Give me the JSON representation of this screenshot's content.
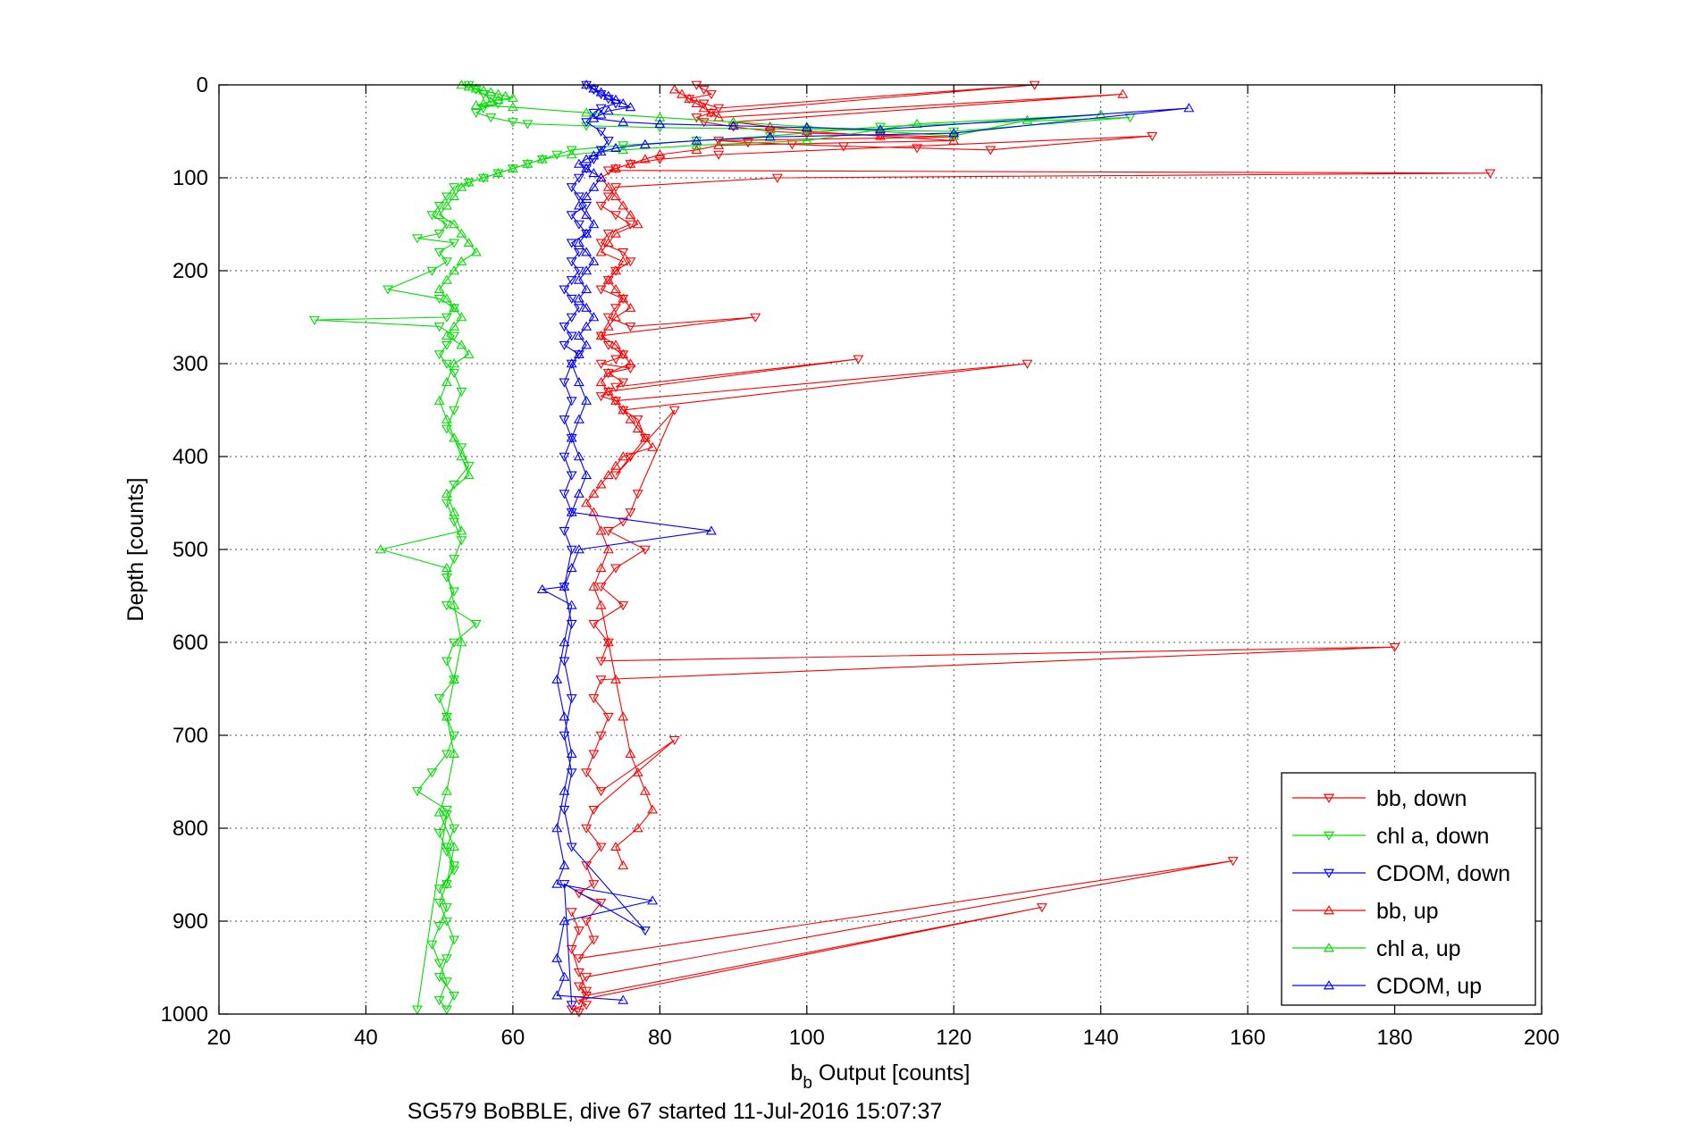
{
  "chart_data": {
    "type": "scatter",
    "xlabel_main": "b",
    "xlabel_sub": "b",
    "xlabel_rest": " Output [counts]",
    "ylabel": "Depth [counts]",
    "caption": "SG579 BoBBLE, dive 67 started 11-Jul-2016 15:07:37",
    "xlim": [
      20,
      200
    ],
    "ylim": [
      0,
      1000
    ],
    "y_reversed": true,
    "grid": true,
    "xticks": [
      "20",
      "40",
      "60",
      "80",
      "100",
      "120",
      "140",
      "160",
      "180",
      "200"
    ],
    "yticks": [
      "0",
      "100",
      "200",
      "300",
      "400",
      "500",
      "600",
      "700",
      "800",
      "900",
      "1000"
    ],
    "legend_position": "bottom-right",
    "series": [
      {
        "name": "bb, down",
        "color": "#ff0000",
        "marker": "triangle-down",
        "x": [
          85,
          86,
          87,
          84,
          86,
          88,
          131,
          87,
          85,
          86,
          90,
          95,
          100,
          110,
          120,
          88,
          92,
          98,
          105,
          115,
          125,
          147,
          88,
          80,
          76,
          74,
          73,
          193,
          96,
          74,
          73,
          72,
          74,
          76,
          73,
          72,
          75,
          76,
          74,
          73,
          72,
          75,
          74,
          73,
          76,
          93,
          72,
          73,
          75,
          74,
          72,
          76,
          73,
          75,
          74,
          107,
          73,
          72,
          74,
          130,
          75,
          77,
          78,
          76,
          74,
          82,
          77,
          76,
          75,
          73,
          78,
          74,
          72,
          75,
          71,
          73,
          72,
          180,
          72,
          71,
          73,
          72,
          71,
          70,
          72,
          82,
          71,
          70,
          72,
          70,
          71,
          69,
          72,
          70,
          71,
          69,
          158,
          70,
          69,
          70,
          132,
          69,
          70,
          68,
          69,
          70,
          69,
          68,
          69,
          68
        ],
        "y": [
          0,
          5,
          10,
          15,
          20,
          25,
          0,
          30,
          35,
          40,
          45,
          50,
          52,
          54,
          56,
          60,
          62,
          64,
          66,
          68,
          70,
          55,
          75,
          80,
          85,
          90,
          92,
          95,
          100,
          110,
          120,
          130,
          140,
          150,
          160,
          170,
          180,
          190,
          200,
          210,
          220,
          230,
          240,
          250,
          260,
          250,
          270,
          280,
          290,
          295,
          300,
          305,
          310,
          320,
          325,
          295,
          330,
          335,
          340,
          300,
          350,
          360,
          380,
          400,
          420,
          350,
          440,
          460,
          470,
          480,
          500,
          520,
          540,
          560,
          580,
          600,
          620,
          605,
          640,
          660,
          680,
          700,
          720,
          740,
          760,
          705,
          780,
          800,
          820,
          840,
          860,
          870,
          880,
          900,
          920,
          940,
          835,
          960,
          970,
          980,
          885,
          985,
          990,
          995,
          998,
          975,
          955,
          930,
          910,
          890
        ]
      },
      {
        "name": "chl a, down",
        "color": "#00dd00",
        "marker": "triangle-down",
        "x": [
          54,
          55,
          56,
          57,
          58,
          56,
          55,
          57,
          60,
          62,
          70,
          80,
          100,
          120,
          144,
          110,
          95,
          85,
          75,
          68,
          66,
          64,
          62,
          60,
          58,
          56,
          54,
          52,
          51,
          50,
          49,
          51,
          50,
          47,
          52,
          50,
          51,
          49,
          43,
          50,
          52,
          51,
          33,
          50,
          52,
          51,
          50,
          51,
          52,
          53,
          52,
          51,
          53,
          54,
          52,
          51,
          52,
          53,
          52,
          51,
          52,
          51,
          55,
          52,
          51,
          52,
          50,
          51,
          52,
          51,
          49,
          47,
          51,
          52,
          51,
          52,
          51,
          50,
          51,
          52,
          51,
          50,
          52,
          51,
          50,
          51,
          50,
          49,
          50,
          51,
          50,
          52,
          51,
          50,
          51,
          47
        ],
        "y": [
          0,
          5,
          10,
          15,
          20,
          25,
          30,
          35,
          40,
          42,
          44,
          46,
          48,
          50,
          35,
          45,
          55,
          60,
          65,
          70,
          75,
          80,
          85,
          90,
          95,
          100,
          105,
          110,
          120,
          130,
          140,
          150,
          160,
          165,
          170,
          180,
          190,
          200,
          220,
          230,
          240,
          250,
          253,
          260,
          270,
          280,
          290,
          300,
          310,
          330,
          350,
          370,
          390,
          410,
          430,
          450,
          470,
          490,
          510,
          530,
          545,
          560,
          580,
          600,
          620,
          640,
          660,
          680,
          700,
          720,
          740,
          760,
          780,
          800,
          820,
          840,
          860,
          880,
          900,
          920,
          940,
          960,
          980,
          995,
          985,
          965,
          945,
          925,
          905,
          885,
          865,
          845,
          825,
          805,
          785,
          995
        ]
      },
      {
        "name": "CDOM, down",
        "color": "#0000ff",
        "marker": "triangle-down",
        "x": [
          70,
          71,
          72,
          73,
          74,
          72,
          71,
          70,
          72,
          73,
          72,
          71,
          70,
          69,
          68,
          69,
          70,
          68,
          69,
          70,
          68,
          69,
          68,
          69,
          68,
          67,
          68,
          69,
          68,
          67,
          68,
          67,
          69,
          68,
          67,
          68,
          67,
          68,
          67,
          68,
          67,
          68,
          67,
          68,
          67,
          68,
          67,
          68,
          67,
          68,
          67,
          68,
          78,
          67,
          68
        ],
        "y": [
          0,
          5,
          10,
          15,
          20,
          25,
          30,
          40,
          50,
          60,
          70,
          80,
          90,
          100,
          110,
          120,
          130,
          140,
          150,
          160,
          170,
          180,
          190,
          200,
          210,
          220,
          230,
          240,
          250,
          260,
          270,
          280,
          290,
          300,
          320,
          340,
          360,
          380,
          400,
          420,
          440,
          460,
          480,
          500,
          540,
          580,
          620,
          660,
          700,
          740,
          780,
          820,
          910,
          860,
          990
        ]
      },
      {
        "name": "bb, up",
        "color": "#ff0000",
        "marker": "triangle-up",
        "x": [
          82,
          83,
          84,
          85,
          86,
          87,
          88,
          143,
          90,
          95,
          100,
          110,
          120,
          88,
          85,
          80,
          78,
          76,
          74,
          72,
          73,
          74,
          75,
          76,
          77,
          74,
          73,
          72,
          75,
          74,
          73,
          74,
          75,
          76,
          74,
          73,
          72,
          74,
          75,
          76,
          73,
          72,
          73,
          74,
          75,
          76,
          77,
          78,
          79,
          75,
          74,
          73,
          72,
          71,
          70,
          71,
          72,
          73,
          72,
          71,
          72,
          73,
          74,
          75,
          76,
          77,
          78,
          79,
          77,
          74,
          75
        ],
        "y": [
          5,
          10,
          15,
          20,
          25,
          30,
          35,
          10,
          40,
          45,
          50,
          55,
          60,
          65,
          70,
          75,
          80,
          85,
          90,
          100,
          110,
          120,
          130,
          140,
          150,
          160,
          170,
          180,
          190,
          200,
          210,
          220,
          230,
          240,
          250,
          260,
          270,
          280,
          290,
          300,
          310,
          320,
          330,
          340,
          350,
          360,
          370,
          380,
          390,
          400,
          410,
          420,
          430,
          440,
          450,
          460,
          480,
          500,
          520,
          540,
          560,
          600,
          640,
          680,
          720,
          740,
          760,
          780,
          800,
          820,
          840
        ]
      },
      {
        "name": "chl a, up",
        "color": "#00dd00",
        "marker": "triangle-up",
        "x": [
          53,
          54,
          55,
          56,
          57,
          58,
          59,
          60,
          58,
          57,
          56,
          55,
          60,
          70,
          80,
          90,
          100,
          110,
          120,
          130,
          140,
          115,
          100,
          85,
          75,
          68,
          64,
          62,
          60,
          58,
          56,
          54,
          53,
          52,
          51,
          50,
          52,
          53,
          54,
          55,
          53,
          52,
          51,
          50,
          51,
          52,
          53,
          52,
          51,
          53,
          54,
          52,
          51,
          50,
          51,
          52,
          53,
          54,
          51,
          52,
          53,
          42,
          51,
          52,
          53,
          52,
          51,
          52,
          51,
          50,
          52,
          51
        ],
        "y": [
          0,
          2,
          4,
          6,
          8,
          10,
          12,
          14,
          16,
          18,
          20,
          22,
          24,
          30,
          35,
          40,
          45,
          50,
          55,
          38,
          32,
          42,
          60,
          65,
          70,
          75,
          80,
          85,
          90,
          95,
          100,
          105,
          110,
          120,
          130,
          140,
          150,
          160,
          170,
          180,
          190,
          200,
          210,
          220,
          230,
          240,
          250,
          260,
          270,
          280,
          290,
          300,
          320,
          340,
          360,
          380,
          400,
          420,
          440,
          460,
          480,
          500,
          520,
          560,
          600,
          640,
          680,
          720,
          760,
          783,
          820,
          860
        ]
      },
      {
        "name": "CDOM, up",
        "color": "#0000ff",
        "marker": "triangle-up",
        "x": [
          70,
          71,
          72,
          73,
          74,
          75,
          76,
          73,
          72,
          71,
          75,
          80,
          90,
          100,
          110,
          152,
          120,
          95,
          85,
          78,
          74,
          72,
          71,
          70,
          69,
          70,
          71,
          72,
          71,
          70,
          69,
          70,
          71,
          70,
          69,
          70,
          71,
          70,
          69,
          70,
          69,
          70,
          71,
          70,
          69,
          70,
          69,
          68,
          69,
          70,
          69,
          68,
          69,
          70,
          69,
          68,
          87,
          69,
          68,
          67,
          64,
          68,
          67,
          66,
          67,
          68,
          67,
          66,
          67,
          66,
          79,
          67,
          66,
          67,
          66,
          75
        ],
        "y": [
          0,
          4,
          8,
          12,
          16,
          20,
          24,
          28,
          32,
          36,
          40,
          42,
          44,
          46,
          48,
          25,
          52,
          56,
          60,
          64,
          68,
          72,
          76,
          80,
          85,
          90,
          95,
          100,
          110,
          120,
          130,
          140,
          150,
          160,
          170,
          180,
          190,
          200,
          210,
          220,
          230,
          240,
          250,
          260,
          270,
          280,
          290,
          300,
          320,
          340,
          360,
          380,
          400,
          420,
          440,
          460,
          480,
          500,
          520,
          540,
          543,
          560,
          600,
          640,
          680,
          720,
          760,
          800,
          840,
          860,
          878,
          900,
          940,
          960,
          980,
          985
        ]
      }
    ]
  }
}
